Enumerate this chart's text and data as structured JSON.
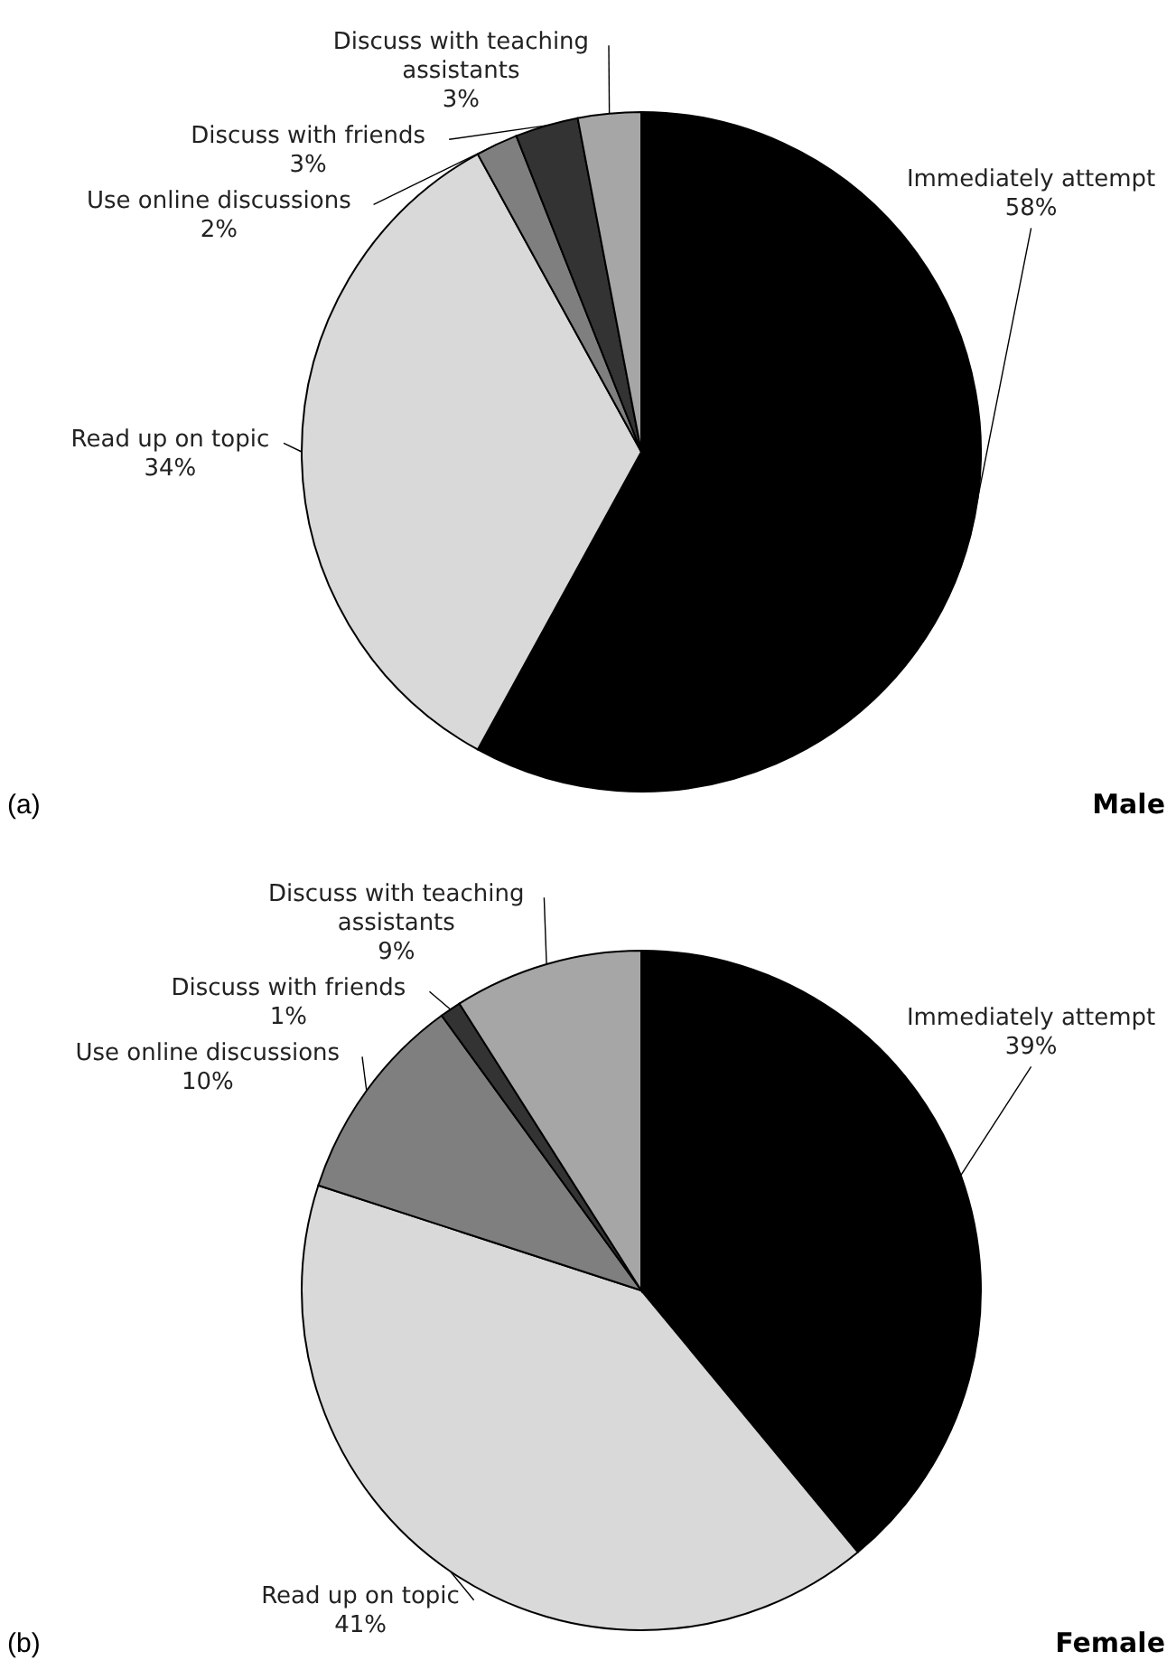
{
  "chart_data": [
    {
      "type": "pie",
      "title": "Male",
      "annotations": [
        "(a)"
      ],
      "categories": [
        "Immediately attempt",
        "Read up on topic",
        "Use online discussions",
        "Discuss with friends",
        "Discuss with teaching assistants"
      ],
      "values": [
        58,
        34,
        2,
        3,
        3
      ],
      "value_labels": [
        "58%",
        "34%",
        "2%",
        "3%",
        "3%"
      ],
      "colors": [
        "#000000",
        "#d9d9d9",
        "#7f7f7f",
        "#333333",
        "#a6a6a6"
      ]
    },
    {
      "type": "pie",
      "title": "Female",
      "annotations": [
        "(b)"
      ],
      "categories": [
        "Immediately attempt",
        "Read up on topic",
        "Use online discussions",
        "Discuss with friends",
        "Discuss with teaching assistants"
      ],
      "values": [
        39,
        41,
        10,
        1,
        9
      ],
      "value_labels": [
        "39%",
        "41%",
        "10%",
        "1%",
        "9%"
      ],
      "colors": [
        "#000000",
        "#d9d9d9",
        "#7f7f7f",
        "#333333",
        "#a6a6a6"
      ]
    }
  ]
}
